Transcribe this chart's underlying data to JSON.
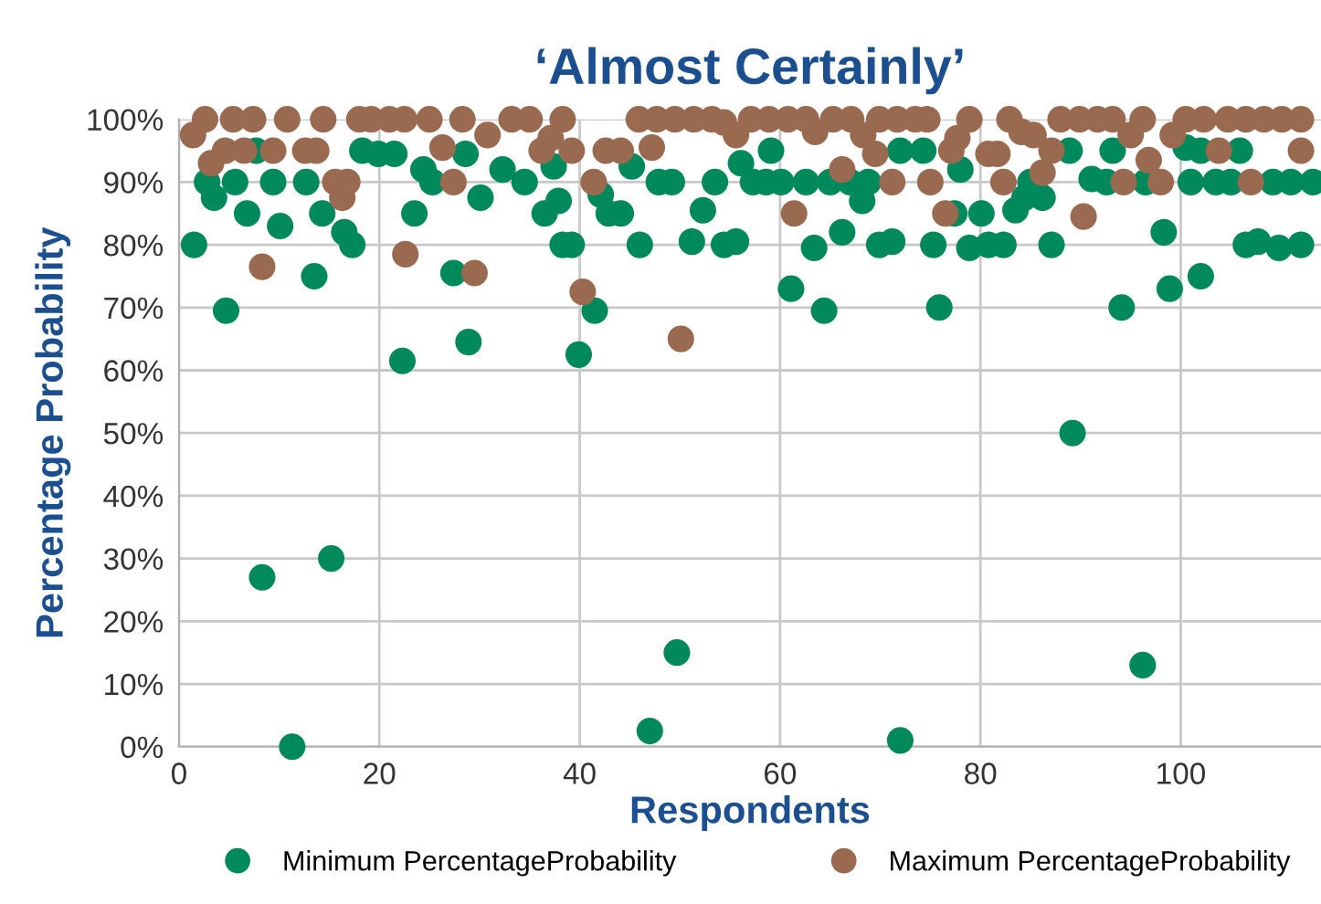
{
  "chart_data": {
    "type": "scatter",
    "title": "‘Almost Certainly’",
    "xlabel": "Respondents",
    "ylabel": "Percentage Probability",
    "xlim": [
      0,
      114
    ],
    "xticks": [
      0,
      20,
      40,
      60,
      80,
      100
    ],
    "ylim": [
      0,
      100
    ],
    "yticks": [
      {
        "value": 0,
        "label": "0%"
      },
      {
        "value": 10,
        "label": "10%"
      },
      {
        "value": 20,
        "label": "20%"
      },
      {
        "value": 30,
        "label": "30%"
      },
      {
        "value": 40,
        "label": "40%"
      },
      {
        "value": 50,
        "label": "50%"
      },
      {
        "value": 60,
        "label": "60%"
      },
      {
        "value": 70,
        "label": "70%"
      },
      {
        "value": 80,
        "label": "80%"
      },
      {
        "value": 90,
        "label": "90%"
      },
      {
        "value": 100,
        "label": "100%"
      }
    ],
    "grid": true,
    "legend": "bottom",
    "marker": "circle",
    "series": [
      {
        "name": "Minimum PercentageProbability",
        "color": "#00895a",
        "x": [
          1.5,
          2.8,
          3.5,
          4.7,
          5.6,
          6.8,
          7.7,
          8.3,
          9.4,
          10.1,
          11.3,
          12.7,
          13.5,
          14.3,
          15.2,
          16.5,
          17.3,
          18.3,
          19.9,
          21.5,
          22.3,
          23.5,
          24.4,
          25.3,
          27.4,
          28.6,
          28.9,
          30.1,
          32.3,
          34.5,
          36.5,
          37.4,
          37.9,
          38.3,
          39.2,
          39.9,
          41.5,
          42.1,
          42.9,
          44.1,
          45.2,
          46,
          47,
          47.9,
          49.2,
          49.7,
          51.2,
          52.3,
          53.5,
          54.4,
          55.6,
          56.1,
          57.3,
          58.6,
          59.1,
          60.1,
          61.1,
          62.6,
          63.4,
          64.4,
          65,
          66.2,
          67,
          68.2,
          68.8,
          69.9,
          71.2,
          72,
          72,
          74.3,
          75.3,
          75.9,
          77.4,
          78,
          78.9,
          80.1,
          80.8,
          82.3,
          83.5,
          84.4,
          85,
          86.2,
          87.1,
          88.9,
          89.2,
          91.1,
          92.6,
          93.2,
          94.1,
          96.2,
          96.5,
          98.3,
          98.9,
          100.5,
          101,
          102,
          102,
          103.5,
          105,
          105.9,
          106.5,
          107.7,
          109.2,
          109.8,
          111,
          112,
          113.2
        ],
        "values": [
          80,
          90,
          87.5,
          69.5,
          90,
          85,
          95,
          27,
          90,
          83,
          0,
          90,
          75,
          85,
          30,
          82,
          80,
          95,
          94.5,
          94.5,
          61.5,
          85,
          92,
          90,
          75.5,
          94.5,
          64.5,
          87.5,
          92,
          90,
          85,
          92.5,
          87,
          80,
          80,
          62.5,
          69.5,
          88,
          85,
          85,
          92.5,
          80,
          2.5,
          90,
          90,
          15,
          80.5,
          85.5,
          90,
          80,
          80.5,
          93,
          90,
          90,
          95,
          90,
          73,
          90,
          79.5,
          69.5,
          90,
          82,
          90,
          87,
          90,
          80,
          80.5,
          1,
          95,
          95,
          80,
          70,
          85,
          92,
          79.5,
          85,
          80,
          80,
          85.5,
          87.5,
          90,
          87.5,
          80,
          95,
          50,
          90.5,
          90,
          95,
          70,
          13,
          90,
          82,
          73,
          95.5,
          90,
          95,
          75,
          90,
          90,
          95,
          80,
          80.5,
          90,
          79.5,
          90,
          80,
          90
        ]
      },
      {
        "name": "Maximum PercentageProbability",
        "color": "#9a6a50",
        "x": [
          1.4,
          2.6,
          3.2,
          4.6,
          5.4,
          6.5,
          7.4,
          8.3,
          9.4,
          10.8,
          12.6,
          13.7,
          14.4,
          15.6,
          16.3,
          16.8,
          18,
          19.2,
          21,
          22.5,
          22.6,
          25,
          26.3,
          27.4,
          28.3,
          29.5,
          30.8,
          33.2,
          35,
          36.2,
          37.1,
          38.3,
          39.2,
          40.3,
          41.4,
          42.6,
          44.1,
          45.9,
          47.2,
          47.7,
          49.5,
          50.1,
          51.4,
          53.2,
          54.4,
          55.6,
          57.1,
          58.9,
          60.8,
          61.4,
          62.6,
          63.5,
          65.3,
          66.2,
          67.1,
          68.3,
          69.5,
          69.9,
          71.2,
          71.7,
          73.5,
          74.7,
          75,
          76.5,
          77.1,
          77.7,
          78.9,
          80.8,
          81.7,
          82.3,
          82.9,
          84.1,
          85.3,
          86.2,
          87.1,
          88,
          89.9,
          90.3,
          91.7,
          93.2,
          94.3,
          95,
          96.2,
          96.8,
          98,
          99.2,
          100.5,
          102.3,
          103.8,
          104.7,
          106.5,
          107,
          108.3,
          110.1,
          112,
          112
        ],
        "values": [
          97.5,
          100,
          93,
          95,
          100,
          95,
          100,
          76.5,
          95,
          100,
          95,
          95,
          100,
          90,
          87.5,
          90,
          100,
          100,
          100,
          100,
          78.5,
          100,
          95.5,
          90,
          100,
          75.5,
          97.5,
          100,
          100,
          95,
          97,
          100,
          95,
          72.5,
          90,
          95,
          95,
          100,
          95.5,
          100,
          100,
          65,
          100,
          100,
          99.5,
          97.5,
          100,
          100,
          100,
          85,
          100,
          98,
          100,
          92,
          100,
          97.5,
          94.5,
          100,
          90,
          100,
          100,
          100,
          90,
          85,
          95,
          97,
          100,
          94.5,
          94.5,
          90,
          100,
          98,
          97.5,
          91.5,
          95,
          100,
          100,
          84.5,
          100,
          100,
          90,
          97.5,
          100,
          93.5,
          90,
          97.5,
          100,
          100,
          95,
          100,
          100,
          90,
          100,
          100,
          95,
          100
        ]
      }
    ]
  }
}
